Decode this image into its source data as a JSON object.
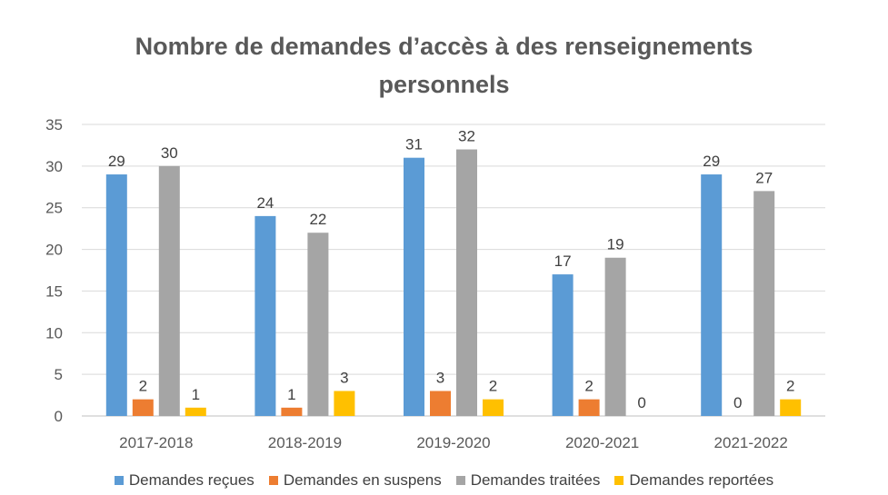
{
  "chart_data": {
    "type": "bar",
    "title_lines": [
      "Nombre de demandes d’accès à des renseignements",
      "personnels"
    ],
    "title": "Nombre de demandes d’accès à des renseignements personnels",
    "categories": [
      "2017-2018",
      "2018-2019",
      "2019-2020",
      "2020-2021",
      "2021-2022"
    ],
    "series": [
      {
        "name": "Demandes reçues",
        "color": "#5B9BD5",
        "values": [
          29,
          24,
          31,
          17,
          29
        ]
      },
      {
        "name": "Demandes en suspens",
        "color": "#ED7D31",
        "values": [
          2,
          1,
          3,
          2,
          0
        ]
      },
      {
        "name": "Demandes traitées",
        "color": "#A5A5A5",
        "values": [
          30,
          22,
          32,
          19,
          27
        ]
      },
      {
        "name": "Demandes reportées",
        "color": "#FFC000",
        "values": [
          1,
          3,
          2,
          0,
          2
        ]
      }
    ],
    "ylim": [
      0,
      35
    ],
    "yticks": [
      0,
      5,
      10,
      15,
      20,
      25,
      30,
      35
    ],
    "xlabel": "",
    "ylabel": "",
    "grid": true,
    "legend_position": "bottom"
  }
}
